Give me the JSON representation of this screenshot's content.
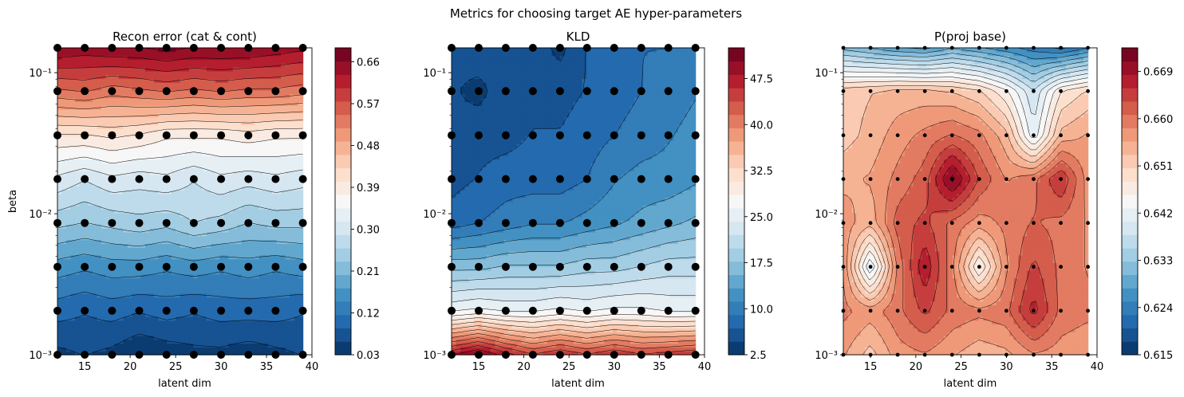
{
  "figure_title": "Metrics for choosing target AE hyper-parameters",
  "colormap": [
    "#053061",
    "#2166ac",
    "#4393c3",
    "#92c5de",
    "#d1e5f0",
    "#f7f7f7",
    "#fddbc7",
    "#f4a582",
    "#d6604d",
    "#b2182b",
    "#67001f"
  ],
  "chart_data": [
    {
      "type": "heatmap",
      "title": "Recon error (cat & cont)",
      "xlabel": "latent dim",
      "ylabel": "beta",
      "xlim": [
        12,
        40
      ],
      "x_ticks": [
        "15",
        "20",
        "25",
        "30",
        "35",
        "40"
      ],
      "x_tick_values": [
        15,
        20,
        25,
        30,
        35,
        40
      ],
      "yscale": "log",
      "ylim": [
        0.001,
        0.15
      ],
      "y_ticks": [
        "10⁻³",
        "10⁻²",
        "10⁻¹"
      ],
      "y_tick_values": [
        0.001,
        0.01,
        0.1
      ],
      "x_grid": [
        12,
        15,
        18,
        21,
        24,
        27,
        30,
        33,
        36,
        39
      ],
      "y_grid": [
        0.001,
        0.00205,
        0.0042,
        0.0086,
        0.0176,
        0.036,
        0.074,
        0.15
      ],
      "z": [
        [
          0.05,
          0.06,
          0.05,
          0.03,
          0.04,
          0.05,
          0.05,
          0.04,
          0.05,
          0.06
        ],
        [
          0.1,
          0.09,
          0.1,
          0.09,
          0.1,
          0.09,
          0.1,
          0.1,
          0.1,
          0.09
        ],
        [
          0.16,
          0.15,
          0.16,
          0.16,
          0.15,
          0.16,
          0.15,
          0.16,
          0.15,
          0.16
        ],
        [
          0.24,
          0.23,
          0.24,
          0.25,
          0.24,
          0.26,
          0.25,
          0.23,
          0.24,
          0.24
        ],
        [
          0.31,
          0.29,
          0.31,
          0.3,
          0.31,
          0.29,
          0.31,
          0.3,
          0.31,
          0.3
        ],
        [
          0.4,
          0.4,
          0.41,
          0.4,
          0.38,
          0.38,
          0.38,
          0.39,
          0.38,
          0.38
        ],
        [
          0.54,
          0.55,
          0.53,
          0.54,
          0.55,
          0.54,
          0.55,
          0.54,
          0.54,
          0.53
        ],
        [
          0.66,
          0.65,
          0.66,
          0.66,
          0.67,
          0.66,
          0.66,
          0.66,
          0.65,
          0.64
        ]
      ],
      "zmin": 0.03,
      "zmax": 0.69,
      "colorbar_ticks": [
        "0.03",
        "0.12",
        "0.21",
        "0.30",
        "0.39",
        "0.48",
        "0.57",
        "0.66"
      ],
      "colorbar_tick_values": [
        0.03,
        0.12,
        0.21,
        0.3,
        0.39,
        0.48,
        0.57,
        0.66
      ],
      "marker": "large dots"
    },
    {
      "type": "heatmap",
      "title": "KLD",
      "xlabel": "latent dim",
      "ylabel": "",
      "xlim": [
        12,
        40
      ],
      "x_ticks": [
        "15",
        "20",
        "25",
        "30",
        "35",
        "40"
      ],
      "x_tick_values": [
        15,
        20,
        25,
        30,
        35,
        40
      ],
      "yscale": "log",
      "ylim": [
        0.001,
        0.15
      ],
      "y_ticks": [
        "10⁻³",
        "10⁻²",
        "10⁻¹"
      ],
      "y_tick_values": [
        0.001,
        0.01,
        0.1
      ],
      "x_grid": [
        12,
        15,
        18,
        21,
        24,
        27,
        30,
        33,
        36,
        39
      ],
      "y_grid": [
        0.001,
        0.00205,
        0.0042,
        0.0086,
        0.0176,
        0.036,
        0.074,
        0.15
      ],
      "z": [
        [
          48,
          51,
          47,
          44,
          46,
          44,
          46,
          44,
          45,
          46
        ],
        [
          26,
          27,
          26,
          26,
          27,
          26,
          27,
          27,
          26,
          26
        ],
        [
          17,
          17,
          18,
          18,
          18,
          19,
          19,
          20,
          21,
          21
        ],
        [
          8,
          9,
          10,
          11,
          11,
          12,
          13,
          14,
          15,
          16
        ],
        [
          6,
          7,
          8,
          8,
          8,
          9,
          11,
          12,
          12,
          13
        ],
        [
          5,
          6,
          6,
          7,
          7,
          8,
          9,
          10,
          11,
          12
        ],
        [
          5,
          4,
          6,
          6,
          6,
          7,
          8,
          9,
          10,
          11
        ],
        [
          5,
          6,
          6,
          6,
          4,
          7,
          8,
          9,
          9,
          10
        ]
      ],
      "zmin": 2.5,
      "zmax": 52.5,
      "colorbar_ticks": [
        "2.5",
        "10.0",
        "17.5",
        "25.0",
        "32.5",
        "40.0",
        "47.5"
      ],
      "colorbar_tick_values": [
        2.5,
        10.0,
        17.5,
        25.0,
        32.5,
        40.0,
        47.5
      ],
      "marker": "large dots"
    },
    {
      "type": "heatmap",
      "title": "P(proj base)",
      "xlabel": "latent dim",
      "ylabel": "",
      "xlim": [
        12,
        40
      ],
      "x_ticks": [
        "15",
        "20",
        "25",
        "30",
        "35",
        "40"
      ],
      "x_tick_values": [
        15,
        20,
        25,
        30,
        35,
        40
      ],
      "yscale": "log",
      "ylim": [
        0.001,
        0.15
      ],
      "y_ticks": [
        "10⁻³",
        "10⁻²",
        "10⁻¹"
      ],
      "y_tick_values": [
        0.001,
        0.01,
        0.1
      ],
      "x_grid": [
        12,
        15,
        18,
        21,
        24,
        27,
        30,
        33,
        36,
        39
      ],
      "y_grid": [
        0.001,
        0.00205,
        0.0042,
        0.0086,
        0.0176,
        0.036,
        0.074,
        0.15
      ],
      "z": [
        [
          0.656,
          0.652,
          0.657,
          0.658,
          0.656,
          0.654,
          0.655,
          0.658,
          0.657,
          0.656
        ],
        [
          0.659,
          0.657,
          0.66,
          0.664,
          0.66,
          0.659,
          0.66,
          0.667,
          0.66,
          0.659
        ],
        [
          0.658,
          0.64,
          0.659,
          0.668,
          0.659,
          0.645,
          0.658,
          0.664,
          0.66,
          0.658
        ],
        [
          0.657,
          0.654,
          0.662,
          0.664,
          0.66,
          0.657,
          0.659,
          0.661,
          0.66,
          0.658
        ],
        [
          0.655,
          0.656,
          0.659,
          0.662,
          0.672,
          0.663,
          0.658,
          0.66,
          0.666,
          0.657
        ],
        [
          0.652,
          0.654,
          0.657,
          0.659,
          0.661,
          0.659,
          0.654,
          0.641,
          0.654,
          0.656
        ],
        [
          0.652,
          0.653,
          0.654,
          0.654,
          0.653,
          0.651,
          0.646,
          0.638,
          0.648,
          0.651
        ],
        [
          0.632,
          0.63,
          0.628,
          0.627,
          0.63,
          0.628,
          0.626,
          0.624,
          0.622,
          0.625
        ]
      ],
      "zmin": 0.615,
      "zmax": 0.6735,
      "colorbar_ticks": [
        "0.615",
        "0.624",
        "0.633",
        "0.642",
        "0.651",
        "0.660",
        "0.669"
      ],
      "colorbar_tick_values": [
        0.615,
        0.624,
        0.633,
        0.642,
        0.651,
        0.66,
        0.669
      ],
      "marker": "small dots"
    }
  ]
}
